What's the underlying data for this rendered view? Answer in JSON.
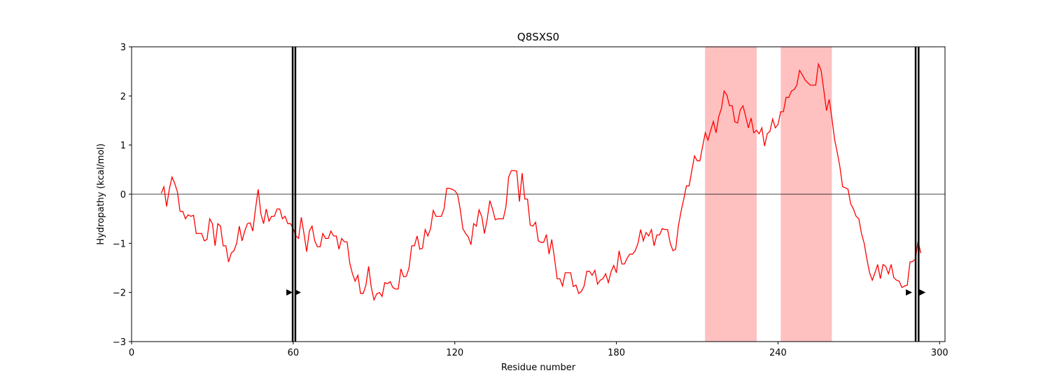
{
  "chart_data": {
    "type": "line",
    "title": "Q8SXS0",
    "xlabel": "Residue number",
    "ylabel": "Hydropathy (kcal/mol)",
    "x": [
      11,
      12,
      13,
      14,
      15,
      16,
      17,
      18,
      19,
      20,
      21,
      22,
      23,
      24,
      25,
      26,
      27,
      28,
      29,
      30,
      31,
      32,
      33,
      34,
      35,
      36,
      37,
      38,
      39,
      40,
      41,
      42,
      43,
      44,
      45,
      46,
      47,
      48,
      49,
      50,
      51,
      52,
      53,
      54,
      55,
      56,
      57,
      58,
      59,
      60,
      61,
      62,
      63,
      64,
      65,
      66,
      67,
      68,
      69,
      70,
      71,
      72,
      73,
      74,
      75,
      76,
      77,
      78,
      79,
      80,
      81,
      82,
      83,
      84,
      85,
      86,
      87,
      88,
      89,
      90,
      91,
      92,
      93,
      94,
      95,
      96,
      97,
      98,
      99,
      100,
      101,
      102,
      103,
      104,
      105,
      106,
      107,
      108,
      109,
      110,
      111,
      112,
      113,
      114,
      115,
      116,
      117,
      118,
      119,
      120,
      121,
      122,
      123,
      124,
      125,
      126,
      127,
      128,
      129,
      130,
      131,
      132,
      133,
      134,
      135,
      136,
      137,
      138,
      139,
      140,
      141,
      142,
      143,
      144,
      145,
      146,
      147,
      148,
      149,
      150,
      151,
      152,
      153,
      154,
      155,
      156,
      157,
      158,
      159,
      160,
      161,
      162,
      163,
      164,
      165,
      166,
      167,
      168,
      169,
      170,
      171,
      172,
      173,
      174,
      175,
      176,
      177,
      178,
      179,
      180,
      181,
      182,
      183,
      184,
      185,
      186,
      187,
      188,
      189,
      190,
      191,
      192,
      193,
      194,
      195,
      196,
      197,
      198,
      199,
      200,
      201,
      202,
      203,
      204,
      205,
      206,
      207,
      208,
      209,
      210,
      211,
      212,
      213,
      214,
      215,
      216,
      217,
      218,
      219,
      220,
      221,
      222,
      223,
      224,
      225,
      226,
      227,
      228,
      229,
      230,
      231,
      232,
      233,
      234,
      235,
      236,
      237,
      238,
      239,
      240,
      241,
      242,
      243,
      244,
      245,
      246,
      247,
      248,
      249,
      250,
      251,
      252,
      253,
      254,
      255,
      256,
      257,
      258,
      259,
      260,
      261,
      262,
      263,
      264,
      265,
      266,
      267,
      268,
      269,
      270,
      271,
      272,
      273,
      274,
      275,
      276,
      277,
      278,
      279,
      280,
      281,
      282,
      283,
      284,
      285,
      286,
      287,
      288,
      289,
      290,
      291,
      292,
      293
    ],
    "series": [
      {
        "color": "#ff0000",
        "values": [
          0.02,
          0.15,
          -0.25,
          0.1,
          0.35,
          0.22,
          0.05,
          -0.35,
          -0.35,
          -0.5,
          -0.42,
          -0.45,
          -0.43,
          -0.8,
          -0.8,
          -0.8,
          -0.95,
          -0.92,
          -0.5,
          -0.6,
          -1.05,
          -0.6,
          -0.65,
          -1.05,
          -1.05,
          -1.38,
          -1.2,
          -1.15,
          -1.0,
          -0.65,
          -0.95,
          -0.75,
          -0.6,
          -0.58,
          -0.75,
          -0.3,
          0.1,
          -0.4,
          -0.6,
          -0.3,
          -0.55,
          -0.45,
          -0.45,
          -0.3,
          -0.3,
          -0.5,
          -0.45,
          -0.6,
          -0.6,
          -0.7,
          -0.85,
          -0.9,
          -0.47,
          -0.8,
          -1.17,
          -0.75,
          -0.65,
          -0.95,
          -1.07,
          -1.07,
          -0.8,
          -0.9,
          -0.9,
          -0.75,
          -0.85,
          -0.85,
          -1.12,
          -0.9,
          -0.97,
          -0.97,
          -1.4,
          -1.62,
          -1.77,
          -1.65,
          -2.02,
          -2.02,
          -1.85,
          -1.47,
          -1.9,
          -2.15,
          -2.03,
          -2.0,
          -2.08,
          -1.8,
          -1.82,
          -1.78,
          -1.9,
          -1.93,
          -1.93,
          -1.52,
          -1.68,
          -1.67,
          -1.5,
          -1.05,
          -1.05,
          -0.85,
          -1.12,
          -1.1,
          -0.72,
          -0.85,
          -0.7,
          -0.33,
          -0.45,
          -0.45,
          -0.45,
          -0.3,
          0.12,
          0.12,
          0.1,
          0.07,
          0.0,
          -0.3,
          -0.7,
          -0.8,
          -0.87,
          -1.03,
          -0.6,
          -0.65,
          -0.32,
          -0.45,
          -0.8,
          -0.52,
          -0.13,
          -0.3,
          -0.52,
          -0.5,
          -0.5,
          -0.5,
          -0.25,
          0.35,
          0.48,
          0.48,
          0.47,
          -0.15,
          0.43,
          -0.1,
          -0.1,
          -0.63,
          -0.65,
          -0.57,
          -0.95,
          -0.98,
          -0.98,
          -0.82,
          -1.22,
          -0.92,
          -1.3,
          -1.72,
          -1.72,
          -1.87,
          -1.6,
          -1.6,
          -1.6,
          -1.88,
          -1.85,
          -2.02,
          -1.98,
          -1.87,
          -1.57,
          -1.57,
          -1.65,
          -1.55,
          -1.83,
          -1.75,
          -1.72,
          -1.62,
          -1.8,
          -1.58,
          -1.45,
          -1.6,
          -1.15,
          -1.42,
          -1.42,
          -1.3,
          -1.22,
          -1.22,
          -1.15,
          -1.0,
          -0.72,
          -0.95,
          -0.78,
          -0.85,
          -0.72,
          -1.05,
          -0.83,
          -0.83,
          -0.7,
          -0.72,
          -0.72,
          -1.0,
          -1.15,
          -1.12,
          -0.65,
          -0.35,
          -0.1,
          0.17,
          0.17,
          0.48,
          0.78,
          0.68,
          0.68,
          0.97,
          1.25,
          1.1,
          1.3,
          1.48,
          1.25,
          1.58,
          1.75,
          2.1,
          2.02,
          1.8,
          1.8,
          1.47,
          1.45,
          1.72,
          1.8,
          1.58,
          1.35,
          1.55,
          1.25,
          1.3,
          1.23,
          1.35,
          0.98,
          1.23,
          1.28,
          1.53,
          1.35,
          1.42,
          1.68,
          1.68,
          1.97,
          1.97,
          2.1,
          2.13,
          2.22,
          2.52,
          2.43,
          2.33,
          2.27,
          2.22,
          2.22,
          2.22,
          2.65,
          2.52,
          2.12,
          1.7,
          1.93,
          1.55,
          1.12,
          0.85,
          0.55,
          0.15,
          0.13,
          0.1,
          -0.2,
          -0.3,
          -0.45,
          -0.5,
          -0.8,
          -1.0,
          -1.32,
          -1.6,
          -1.75,
          -1.6,
          -1.43,
          -1.72,
          -1.43,
          -1.47,
          -1.62,
          -1.43,
          -1.7,
          -1.75,
          -1.77,
          -1.9,
          -1.87,
          -1.85,
          -1.38,
          -1.37,
          -1.32,
          -0.95,
          -1.2
        ]
      }
    ],
    "spans": [
      [
        212.9,
        232.1
      ],
      [
        241,
        260
      ]
    ],
    "span_color": "#ffc0c0",
    "vlines": [
      59.8,
      60.8,
      291.1,
      292.2
    ],
    "markers": {
      "x": [
        58.5,
        61.6,
        288.5,
        293.5
      ],
      "y": [
        -2,
        -2,
        -2,
        -2
      ]
    },
    "hline": 0,
    "xlim": [
      0,
      302
    ],
    "xticks": [
      0,
      60,
      120,
      180,
      240,
      300
    ],
    "ylim": [
      -3,
      3
    ],
    "yticks": [
      {
        "value": -3,
        "label": "−3"
      },
      {
        "value": -2,
        "label": "−2"
      },
      {
        "value": -1,
        "label": "−1"
      },
      0,
      1,
      2,
      3
    ]
  }
}
